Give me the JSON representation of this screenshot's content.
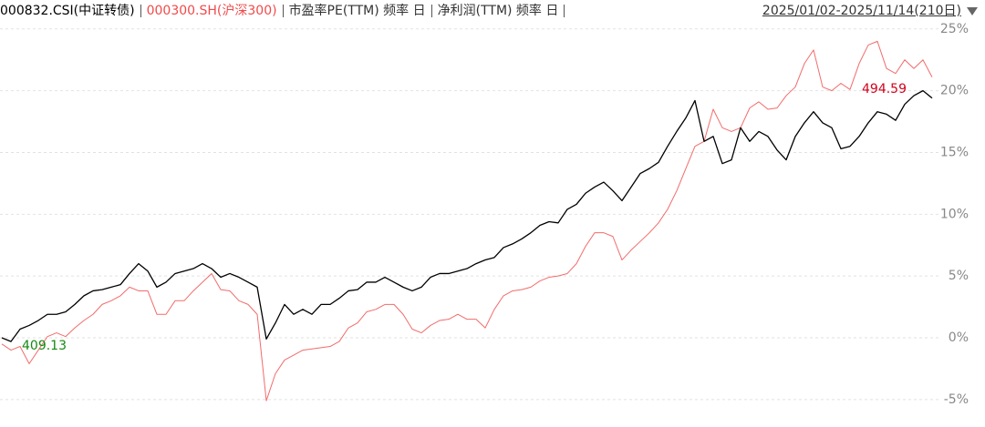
{
  "chart_data": {
    "type": "line",
    "series": [
      {
        "name": "000832.CSI(中证转债)",
        "color": "#000000",
        "values": [
          0.0,
          -0.3,
          0.7,
          1.0,
          1.4,
          1.9,
          1.9,
          2.1,
          2.7,
          3.4,
          3.8,
          3.9,
          4.1,
          4.3,
          5.2,
          6.0,
          5.4,
          4.1,
          4.5,
          5.2,
          5.4,
          5.6,
          6.0,
          5.6,
          4.9,
          5.2,
          4.9,
          4.5,
          4.1,
          -0.1,
          1.2,
          2.7,
          1.9,
          2.3,
          1.9,
          2.7,
          2.7,
          3.2,
          3.8,
          3.9,
          4.5,
          4.5,
          4.9,
          4.5,
          4.1,
          3.8,
          4.1,
          4.9,
          5.2,
          5.2,
          5.4,
          5.6,
          6.0,
          6.3,
          6.5,
          7.3,
          7.6,
          8.0,
          8.5,
          9.1,
          9.4,
          9.3,
          10.4,
          10.8,
          11.7,
          12.2,
          12.6,
          11.9,
          11.1,
          12.2,
          13.3,
          13.7,
          14.2,
          15.5,
          16.7,
          17.8,
          19.2,
          15.9,
          16.3,
          14.1,
          14.4,
          17.0,
          15.9,
          16.7,
          16.3,
          15.2,
          14.4,
          16.3,
          17.4,
          18.3,
          17.4,
          17.0,
          15.3,
          15.5,
          16.3,
          17.4,
          18.3,
          18.1,
          17.6,
          18.9,
          19.6,
          20.0,
          19.4
        ]
      },
      {
        "name": "000300.SH(沪深300)",
        "color": "#f26b6b",
        "values": [
          -0.5,
          -1.0,
          -0.7,
          -2.1,
          -1.0,
          0.1,
          0.4,
          0.1,
          0.8,
          1.4,
          1.9,
          2.7,
          3.0,
          3.4,
          4.1,
          3.8,
          3.8,
          1.9,
          1.9,
          3.0,
          3.0,
          3.8,
          4.5,
          5.2,
          3.9,
          3.8,
          3.0,
          2.7,
          1.9,
          -5.1,
          -2.9,
          -1.8,
          -1.4,
          -1.0,
          -0.9,
          -0.8,
          -0.7,
          -0.3,
          0.8,
          1.2,
          2.1,
          2.3,
          2.7,
          2.7,
          1.9,
          0.7,
          0.4,
          1.0,
          1.4,
          1.5,
          1.9,
          1.5,
          1.5,
          0.8,
          2.3,
          3.4,
          3.8,
          3.9,
          4.1,
          4.6,
          4.9,
          5.0,
          5.2,
          6.0,
          7.4,
          8.5,
          8.5,
          8.2,
          6.3,
          7.1,
          7.8,
          8.5,
          9.3,
          10.4,
          11.9,
          13.7,
          15.5,
          15.9,
          18.5,
          17.0,
          16.7,
          17.0,
          18.6,
          19.1,
          18.5,
          18.6,
          19.6,
          20.3,
          22.2,
          23.3,
          20.3,
          20.0,
          20.6,
          20.1,
          22.2,
          23.7,
          24.0,
          21.8,
          21.4,
          22.5,
          21.8,
          22.5,
          21.1
        ]
      }
    ],
    "header_items": [
      "市盈率PE(TTM) 频率 日",
      "净利润(TTM) 频率 日"
    ],
    "date_range": "2025/01/02-2025/11/14(210日)",
    "annotations": [
      {
        "text": "409.13",
        "color": "#138a13"
      },
      {
        "text": "494.59",
        "color": "#d0021b"
      }
    ],
    "ylim": [
      -7,
      25.5
    ],
    "yticks": [
      {
        "value": -5,
        "label": "-5%"
      },
      {
        "value": 0,
        "label": "0%"
      },
      {
        "value": 5,
        "label": "5%"
      },
      {
        "value": 10,
        "label": "10%"
      },
      {
        "value": 15,
        "label": "15%"
      },
      {
        "value": 20,
        "label": "20%"
      },
      {
        "value": 25,
        "label": "25%"
      }
    ],
    "grid": true
  }
}
